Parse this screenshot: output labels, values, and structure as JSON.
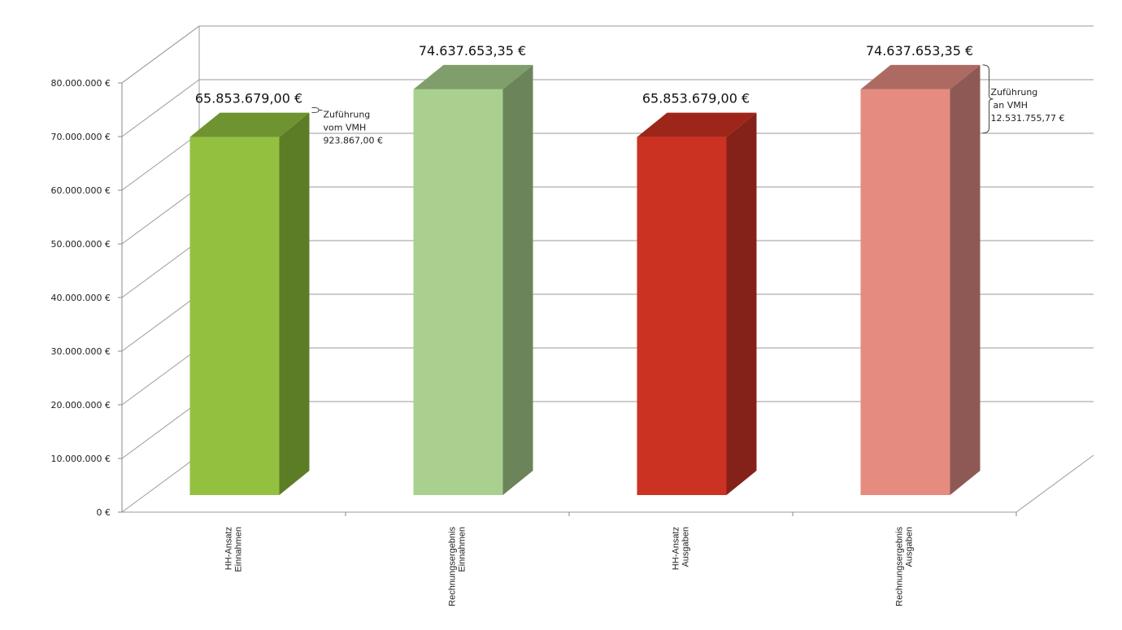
{
  "chart_data": {
    "type": "bar",
    "categories": [
      [
        "HH-Ansatz",
        "Einnahmen"
      ],
      [
        "Rechnungsergebnis",
        "Einnahmen"
      ],
      [
        "HH-Ansatz",
        "Ausgaben"
      ],
      [
        "Rechnungsergebnis",
        "Ausgaben"
      ]
    ],
    "values": [
      65853679.0,
      74637653.35,
      65853679.0,
      74637653.35
    ],
    "value_labels": [
      "65.853.679,00 €",
      "74.637.653,35 €",
      "65.853.679,00 €",
      "74.637.653,35 €"
    ],
    "colors": {
      "front": [
        "#94c040",
        "#a9d08e",
        "#cc3222",
        "#e58b80"
      ],
      "side": [
        "#5c7d26",
        "#6b8459",
        "#842118",
        "#8e5954"
      ],
      "top": [
        "#6f9330",
        "#7f9e6b",
        "#9e2519",
        "#ad6a62"
      ]
    },
    "ylim": [
      0,
      80000000
    ],
    "yticks": [
      {
        "value": 0,
        "label": "0 €"
      },
      {
        "value": 10000000,
        "label": "10.000.000 €"
      },
      {
        "value": 20000000,
        "label": "20.000.000 €"
      },
      {
        "value": 30000000,
        "label": "30.000.000 €"
      },
      {
        "value": 40000000,
        "label": "40.000.000 €"
      },
      {
        "value": 50000000,
        "label": "50.000.000 €"
      },
      {
        "value": 60000000,
        "label": "60.000.000 €"
      },
      {
        "value": 70000000,
        "label": "70.000.000 €"
      },
      {
        "value": 80000000,
        "label": "80.000.000 €"
      }
    ],
    "grid": true,
    "annotations": [
      {
        "bar": 0,
        "from": 65853679.0,
        "to": 66777546.0,
        "lines": [
          "Zuführung",
          "vom VMH",
          "923.867,00 €"
        ]
      },
      {
        "bar": 3,
        "from": 62105897.58,
        "to": 74637653.35,
        "lines": [
          "Zuführung",
          "an VMH",
          "12.531.755,77 €"
        ]
      }
    ]
  }
}
